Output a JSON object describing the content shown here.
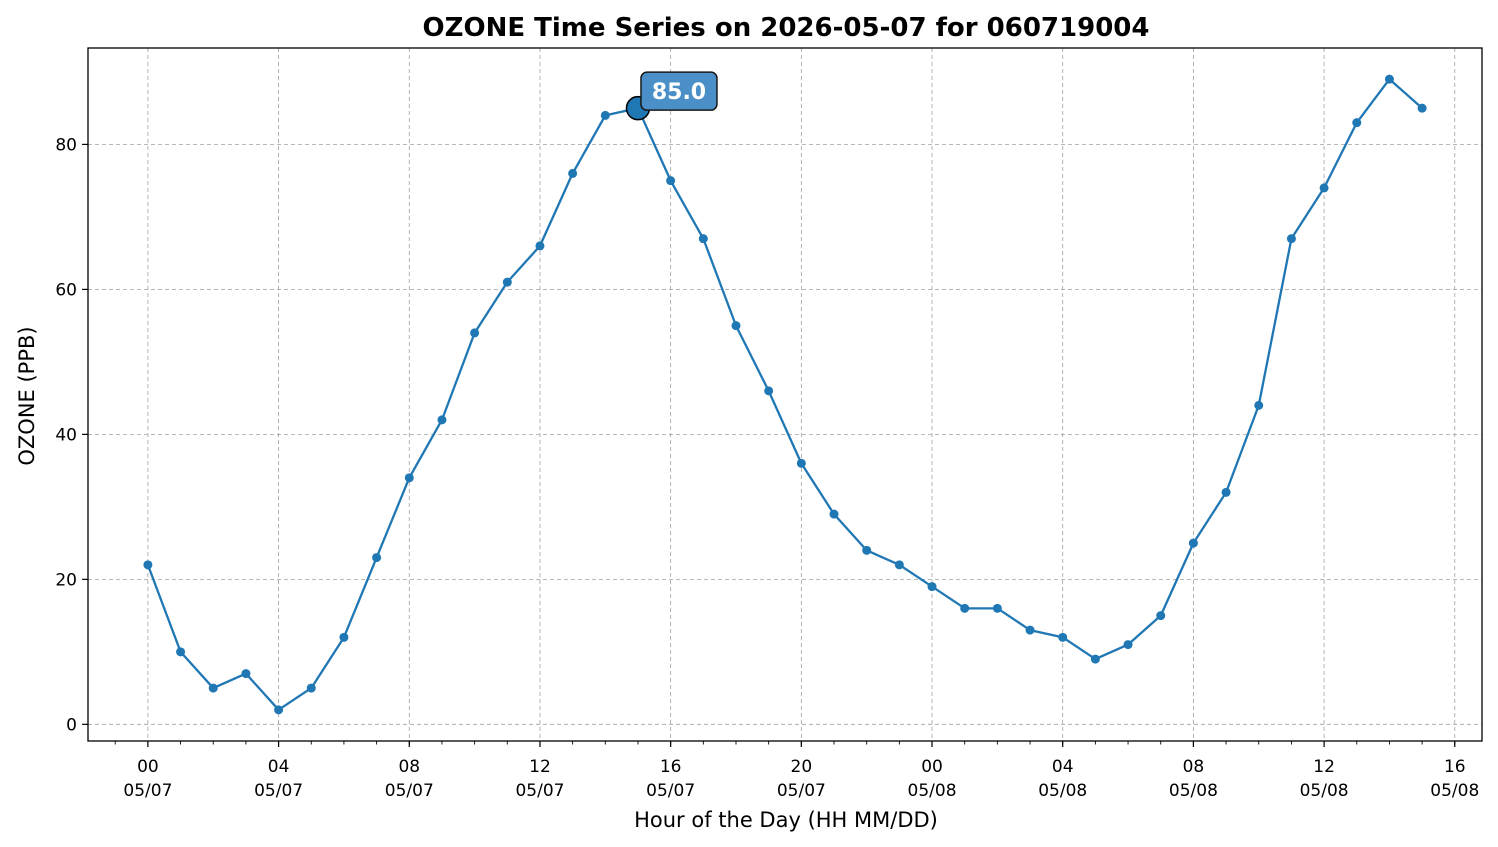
{
  "chart_data": {
    "type": "line",
    "title": "OZONE Time Series on 2026-05-07 for 060719004",
    "xlabel": "Hour of the Day (HH MM/DD)",
    "ylabel": "OZONE (PPB)",
    "x": [
      "2026-05-07 00:00",
      "2026-05-07 01:00",
      "2026-05-07 02:00",
      "2026-05-07 03:00",
      "2026-05-07 04:00",
      "2026-05-07 05:00",
      "2026-05-07 06:00",
      "2026-05-07 07:00",
      "2026-05-07 08:00",
      "2026-05-07 09:00",
      "2026-05-07 10:00",
      "2026-05-07 11:00",
      "2026-05-07 12:00",
      "2026-05-07 13:00",
      "2026-05-07 14:00",
      "2026-05-07 15:00",
      "2026-05-07 16:00",
      "2026-05-07 17:00",
      "2026-05-07 18:00",
      "2026-05-07 19:00",
      "2026-05-07 20:00",
      "2026-05-07 21:00",
      "2026-05-07 22:00",
      "2026-05-07 23:00",
      "2026-05-08 00:00",
      "2026-05-08 01:00",
      "2026-05-08 02:00",
      "2026-05-08 03:00",
      "2026-05-08 04:00",
      "2026-05-08 05:00",
      "2026-05-08 06:00",
      "2026-05-08 07:00",
      "2026-05-08 08:00",
      "2026-05-08 09:00",
      "2026-05-08 10:00",
      "2026-05-08 11:00",
      "2026-05-08 12:00",
      "2026-05-08 13:00",
      "2026-05-08 14:00",
      "2026-05-08 15:00"
    ],
    "series": [
      {
        "values": [
          22,
          10,
          5,
          7,
          2,
          5,
          12,
          23,
          34,
          42,
          54,
          61,
          66,
          76,
          84,
          85,
          75,
          67,
          55,
          46,
          36,
          29,
          24,
          22,
          19,
          16,
          16,
          13,
          12,
          9,
          11,
          15,
          25,
          32,
          44,
          67,
          74,
          83,
          89,
          85
        ]
      }
    ],
    "ylim": [
      -2.3,
      93.3
    ],
    "xlim": [
      "2026-05-06 22:10",
      "2026-05-08 16:50"
    ],
    "yticks": [
      0,
      20,
      40,
      60,
      80
    ],
    "xticks": [
      {
        "x": "2026-05-07 00:00",
        "hour": "00",
        "date": "05/07"
      },
      {
        "x": "2026-05-07 04:00",
        "hour": "04",
        "date": "05/07"
      },
      {
        "x": "2026-05-07 08:00",
        "hour": "08",
        "date": "05/07"
      },
      {
        "x": "2026-05-07 12:00",
        "hour": "12",
        "date": "05/07"
      },
      {
        "x": "2026-05-07 16:00",
        "hour": "16",
        "date": "05/07"
      },
      {
        "x": "2026-05-07 20:00",
        "hour": "20",
        "date": "05/07"
      },
      {
        "x": "2026-05-08 00:00",
        "hour": "00",
        "date": "05/08"
      },
      {
        "x": "2026-05-08 04:00",
        "hour": "04",
        "date": "05/08"
      },
      {
        "x": "2026-05-08 08:00",
        "hour": "08",
        "date": "05/08"
      },
      {
        "x": "2026-05-08 12:00",
        "hour": "12",
        "date": "05/08"
      },
      {
        "x": "2026-05-08 16:00",
        "hour": "16",
        "date": "05/08"
      }
    ],
    "grid": true,
    "annotation": {
      "x": "2026-05-07 15:00",
      "y": 85,
      "label": "85.0"
    },
    "colors": {
      "line": "#1f77b4",
      "annotation_box": "#4a8fc7",
      "grid": "#a0a0a0"
    }
  }
}
